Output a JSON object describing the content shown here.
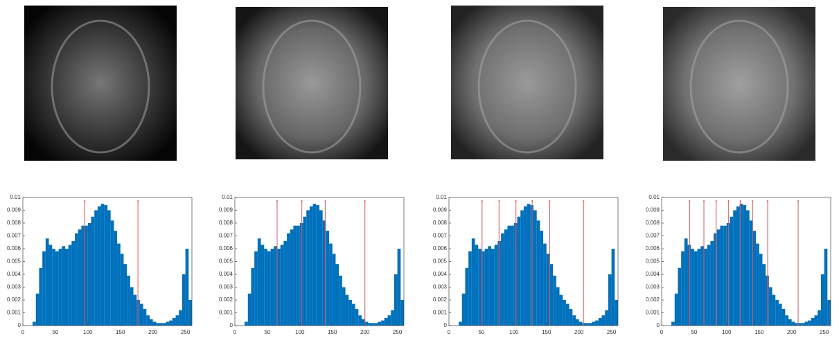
{
  "chart_data": [
    {
      "type": "histogram",
      "color": "#0072bd",
      "threshold_color": "#ff4d4d",
      "bins": [
        0,
        5,
        10,
        15,
        20,
        25,
        30,
        35,
        40,
        45,
        50,
        55,
        60,
        65,
        70,
        75,
        80,
        85,
        90,
        95,
        100,
        105,
        110,
        115,
        120,
        125,
        130,
        135,
        140,
        145,
        150,
        155,
        160,
        165,
        170,
        175,
        180,
        185,
        190,
        195,
        200,
        205,
        210,
        215,
        220,
        225,
        230,
        235,
        240,
        245,
        250,
        255,
        260
      ],
      "values": [
        0,
        0,
        0,
        0.0003,
        0.0025,
        0.0045,
        0.0058,
        0.0068,
        0.0063,
        0.006,
        0.0058,
        0.006,
        0.0062,
        0.006,
        0.0063,
        0.0066,
        0.0072,
        0.0075,
        0.0078,
        0.0078,
        0.008,
        0.0085,
        0.009,
        0.0093,
        0.0095,
        0.0094,
        0.009,
        0.0082,
        0.0074,
        0.0064,
        0.0056,
        0.0048,
        0.0039,
        0.003,
        0.0024,
        0.002,
        0.0017,
        0.0013,
        0.0008,
        0.0005,
        0.0003,
        0.0002,
        0.0002,
        0.0002,
        0.0003,
        0.0004,
        0.0006,
        0.0008,
        0.0012,
        0.004,
        0.006,
        0.002
      ],
      "thresholds": [
        95,
        177
      ],
      "xlim": [
        0,
        260
      ],
      "ylim": [
        0,
        0.01
      ],
      "xticks": [
        0,
        50,
        100,
        150,
        200,
        250
      ],
      "yticks": [
        0,
        0.001,
        0.002,
        0.003,
        0.004,
        0.005,
        0.006,
        0.007,
        0.008,
        0.009,
        0.01
      ]
    },
    {
      "type": "histogram",
      "color": "#0072bd",
      "threshold_color": "#ff4d4d",
      "bins": [
        0,
        5,
        10,
        15,
        20,
        25,
        30,
        35,
        40,
        45,
        50,
        55,
        60,
        65,
        70,
        75,
        80,
        85,
        90,
        95,
        100,
        105,
        110,
        115,
        120,
        125,
        130,
        135,
        140,
        145,
        150,
        155,
        160,
        165,
        170,
        175,
        180,
        185,
        190,
        195,
        200,
        205,
        210,
        215,
        220,
        225,
        230,
        235,
        240,
        245,
        250,
        255,
        260
      ],
      "values": [
        0,
        0,
        0,
        0.0003,
        0.0025,
        0.0045,
        0.0058,
        0.0068,
        0.0063,
        0.006,
        0.0058,
        0.006,
        0.0062,
        0.006,
        0.0063,
        0.0066,
        0.0072,
        0.0075,
        0.0078,
        0.0078,
        0.008,
        0.0085,
        0.009,
        0.0093,
        0.0095,
        0.0094,
        0.009,
        0.0082,
        0.0074,
        0.0064,
        0.0056,
        0.0048,
        0.0039,
        0.003,
        0.0024,
        0.002,
        0.0017,
        0.0013,
        0.0008,
        0.0005,
        0.0003,
        0.0002,
        0.0002,
        0.0002,
        0.0003,
        0.0004,
        0.0006,
        0.0008,
        0.0012,
        0.004,
        0.006,
        0.002
      ],
      "thresholds": [
        65,
        103,
        139,
        200
      ],
      "xlim": [
        0,
        260
      ],
      "ylim": [
        0,
        0.01
      ],
      "xticks": [
        0,
        50,
        100,
        150,
        200,
        250
      ],
      "yticks": [
        0,
        0.001,
        0.002,
        0.003,
        0.004,
        0.005,
        0.006,
        0.007,
        0.008,
        0.009,
        0.01
      ]
    },
    {
      "type": "histogram",
      "color": "#0072bd",
      "threshold_color": "#ff4d4d",
      "bins": [
        0,
        5,
        10,
        15,
        20,
        25,
        30,
        35,
        40,
        45,
        50,
        55,
        60,
        65,
        70,
        75,
        80,
        85,
        90,
        95,
        100,
        105,
        110,
        115,
        120,
        125,
        130,
        135,
        140,
        145,
        150,
        155,
        160,
        165,
        170,
        175,
        180,
        185,
        190,
        195,
        200,
        205,
        210,
        215,
        220,
        225,
        230,
        235,
        240,
        245,
        250,
        255,
        260
      ],
      "values": [
        0,
        0,
        0,
        0.0003,
        0.0025,
        0.0045,
        0.0058,
        0.0068,
        0.0063,
        0.006,
        0.0058,
        0.006,
        0.0062,
        0.006,
        0.0063,
        0.0066,
        0.0072,
        0.0075,
        0.0078,
        0.0078,
        0.008,
        0.0085,
        0.009,
        0.0093,
        0.0095,
        0.0094,
        0.009,
        0.0082,
        0.0074,
        0.0064,
        0.0056,
        0.0048,
        0.0039,
        0.003,
        0.0024,
        0.002,
        0.0017,
        0.0013,
        0.0008,
        0.0005,
        0.0003,
        0.0002,
        0.0002,
        0.0002,
        0.0003,
        0.0004,
        0.0006,
        0.0008,
        0.0012,
        0.004,
        0.006,
        0.002
      ],
      "thresholds": [
        51,
        77,
        103,
        128,
        155,
        207
      ],
      "xlim": [
        0,
        260
      ],
      "ylim": [
        0,
        0.01
      ],
      "xticks": [
        0,
        50,
        100,
        150,
        200,
        250
      ],
      "yticks": [
        0,
        0.001,
        0.002,
        0.003,
        0.004,
        0.005,
        0.006,
        0.007,
        0.008,
        0.009,
        0.01
      ]
    },
    {
      "type": "histogram",
      "color": "#0072bd",
      "threshold_color": "#ff4d4d",
      "bins": [
        0,
        5,
        10,
        15,
        20,
        25,
        30,
        35,
        40,
        45,
        50,
        55,
        60,
        65,
        70,
        75,
        80,
        85,
        90,
        95,
        100,
        105,
        110,
        115,
        120,
        125,
        130,
        135,
        140,
        145,
        150,
        155,
        160,
        165,
        170,
        175,
        180,
        185,
        190,
        195,
        200,
        205,
        210,
        215,
        220,
        225,
        230,
        235,
        240,
        245,
        250,
        255,
        260
      ],
      "values": [
        0,
        0,
        0,
        0.0003,
        0.0025,
        0.0045,
        0.0058,
        0.0068,
        0.0063,
        0.006,
        0.0058,
        0.006,
        0.0062,
        0.006,
        0.0063,
        0.0066,
        0.0072,
        0.0075,
        0.0078,
        0.0078,
        0.008,
        0.0085,
        0.009,
        0.0093,
        0.0095,
        0.0094,
        0.009,
        0.0082,
        0.0074,
        0.0064,
        0.0056,
        0.0048,
        0.0039,
        0.003,
        0.0024,
        0.002,
        0.0017,
        0.0013,
        0.0008,
        0.0005,
        0.0003,
        0.0002,
        0.0002,
        0.0002,
        0.0003,
        0.0004,
        0.0006,
        0.0008,
        0.0012,
        0.004,
        0.006,
        0.002
      ],
      "thresholds": [
        43,
        65,
        84,
        103,
        121,
        140,
        163,
        210
      ],
      "xlim": [
        0,
        260
      ],
      "ylim": [
        0,
        0.01
      ],
      "xticks": [
        0,
        50,
        100,
        150,
        200,
        250
      ],
      "yticks": [
        0,
        0.001,
        0.002,
        0.003,
        0.004,
        0.005,
        0.006,
        0.007,
        0.008,
        0.009,
        0.01
      ]
    }
  ]
}
